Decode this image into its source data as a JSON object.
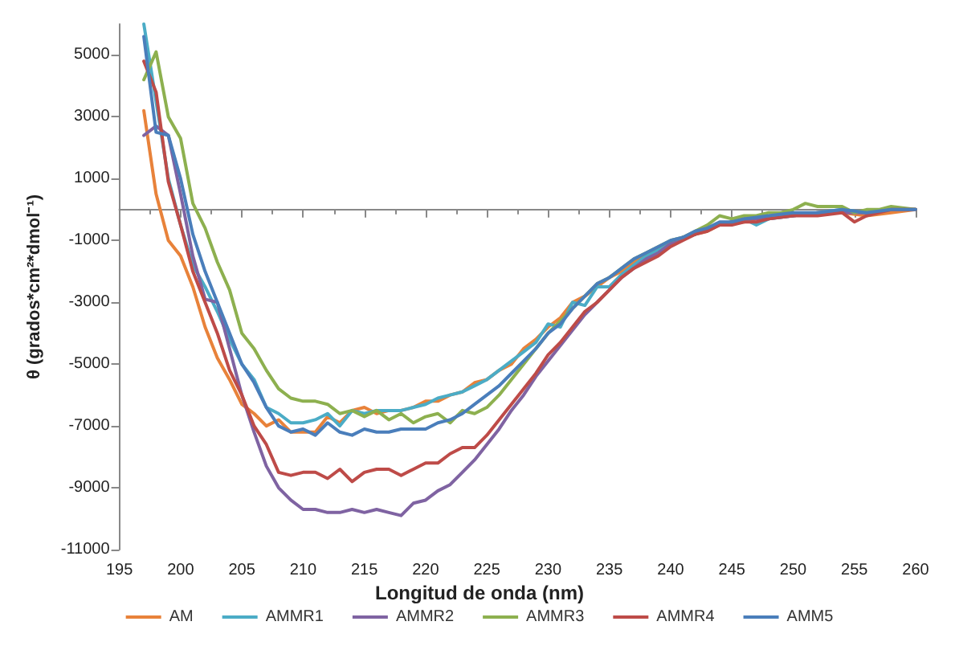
{
  "chart_data": {
    "type": "line",
    "xlabel": "Longitud de onda (nm)",
    "ylabel": "θ (grados*cm²*dmol⁻¹)",
    "xlim": [
      195,
      260
    ],
    "xticks": [
      195,
      200,
      205,
      210,
      215,
      220,
      225,
      230,
      235,
      240,
      245,
      250,
      255,
      260
    ],
    "ylim": [
      -11000,
      6000
    ],
    "yticks": [
      -11000,
      -9000,
      -7000,
      -5000,
      -3000,
      -1000,
      1000,
      3000,
      5000
    ],
    "grid": false,
    "legend": "bottom",
    "marker": "none",
    "line_style": "solid",
    "series": [
      {
        "name": "AM",
        "color": "#e8823a",
        "x": [
          197,
          198,
          199,
          200,
          201,
          202,
          203,
          204,
          205,
          206,
          207,
          208,
          209,
          210,
          211,
          212,
          213,
          214,
          215,
          216,
          217,
          218,
          219,
          220,
          221,
          222,
          223,
          224,
          225,
          226,
          227,
          228,
          229,
          230,
          231,
          232,
          233,
          234,
          235,
          236,
          237,
          238,
          239,
          240,
          241,
          242,
          243,
          244,
          245,
          246,
          247,
          248,
          249,
          250,
          252,
          254,
          256,
          258,
          260
        ],
        "values": [
          3200,
          500,
          -1000,
          -1500,
          -2500,
          -3800,
          -4800,
          -5500,
          -6300,
          -6600,
          -7000,
          -6800,
          -7200,
          -7200,
          -7200,
          -6700,
          -6900,
          -6500,
          -6400,
          -6600,
          -6500,
          -6500,
          -6400,
          -6200,
          -6200,
          -6000,
          -5900,
          -5600,
          -5500,
          -5200,
          -5000,
          -4500,
          -4200,
          -3800,
          -3500,
          -3000,
          -2800,
          -2500,
          -2200,
          -2000,
          -1700,
          -1500,
          -1300,
          -1100,
          -900,
          -800,
          -700,
          -500,
          -400,
          -400,
          -300,
          -300,
          -200,
          -200,
          -100,
          -100,
          -200,
          -100,
          0
        ]
      },
      {
        "name": "AMMR1",
        "color": "#4bacc6",
        "x": [
          197,
          198,
          199,
          200,
          201,
          202,
          203,
          204,
          205,
          206,
          207,
          208,
          209,
          210,
          211,
          212,
          213,
          214,
          215,
          216,
          217,
          218,
          219,
          220,
          221,
          222,
          223,
          224,
          225,
          226,
          227,
          228,
          229,
          230,
          231,
          232,
          233,
          234,
          235,
          236,
          237,
          238,
          239,
          240,
          241,
          242,
          243,
          244,
          245,
          246,
          247,
          248,
          250,
          252,
          254,
          256,
          258,
          260
        ],
        "values": [
          6000,
          3500,
          1000,
          -500,
          -1800,
          -2500,
          -3300,
          -4200,
          -5000,
          -5500,
          -6400,
          -6600,
          -6900,
          -6900,
          -6800,
          -6600,
          -7000,
          -6500,
          -6600,
          -6500,
          -6500,
          -6500,
          -6400,
          -6300,
          -6100,
          -6000,
          -5900,
          -5700,
          -5500,
          -5200,
          -4900,
          -4600,
          -4300,
          -3700,
          -3800,
          -3000,
          -3100,
          -2500,
          -2500,
          -2100,
          -1800,
          -1500,
          -1300,
          -1100,
          -900,
          -800,
          -600,
          -500,
          -400,
          -300,
          -500,
          -300,
          -200,
          -100,
          0,
          -100,
          0,
          0
        ]
      },
      {
        "name": "AMMR2",
        "color": "#7f63a2",
        "x": [
          197,
          198,
          199,
          200,
          201,
          202,
          203,
          204,
          205,
          206,
          207,
          208,
          209,
          210,
          211,
          212,
          213,
          214,
          215,
          216,
          217,
          218,
          219,
          220,
          221,
          222,
          223,
          224,
          225,
          226,
          227,
          228,
          229,
          230,
          231,
          232,
          233,
          234,
          235,
          236,
          237,
          238,
          239,
          240,
          241,
          242,
          243,
          244,
          245,
          246,
          248,
          250,
          252,
          254,
          256,
          258,
          260
        ],
        "values": [
          2400,
          2700,
          2400,
          500,
          -1500,
          -2900,
          -3000,
          -4500,
          -6000,
          -7200,
          -8300,
          -9000,
          -9400,
          -9700,
          -9700,
          -9800,
          -9800,
          -9700,
          -9800,
          -9700,
          -9800,
          -9900,
          -9500,
          -9400,
          -9100,
          -8900,
          -8500,
          -8100,
          -7600,
          -7100,
          -6500,
          -6000,
          -5400,
          -4900,
          -4400,
          -3900,
          -3400,
          -3000,
          -2600,
          -2200,
          -1900,
          -1600,
          -1400,
          -1100,
          -900,
          -800,
          -600,
          -500,
          -400,
          -300,
          -300,
          -200,
          -100,
          -100,
          -100,
          0,
          0
        ]
      },
      {
        "name": "AMMR3",
        "color": "#8db04f",
        "x": [
          197,
          198,
          199,
          200,
          201,
          202,
          203,
          204,
          205,
          206,
          207,
          208,
          209,
          210,
          211,
          212,
          213,
          214,
          215,
          216,
          217,
          218,
          219,
          220,
          221,
          222,
          223,
          224,
          225,
          226,
          227,
          228,
          229,
          230,
          231,
          232,
          233,
          234,
          235,
          236,
          237,
          238,
          239,
          240,
          241,
          242,
          243,
          244,
          245,
          246,
          247,
          248,
          249,
          250,
          251,
          252,
          253,
          254,
          255,
          256,
          257,
          258,
          260
        ],
        "values": [
          4200,
          5100,
          3000,
          2300,
          200,
          -600,
          -1700,
          -2600,
          -4000,
          -4500,
          -5200,
          -5800,
          -6100,
          -6200,
          -6200,
          -6300,
          -6600,
          -6500,
          -6700,
          -6500,
          -6800,
          -6600,
          -6900,
          -6700,
          -6600,
          -6900,
          -6500,
          -6600,
          -6400,
          -6000,
          -5500,
          -5000,
          -4500,
          -4000,
          -3600,
          -3200,
          -2800,
          -2400,
          -2200,
          -1900,
          -1600,
          -1400,
          -1200,
          -1000,
          -900,
          -700,
          -500,
          -200,
          -300,
          -200,
          -200,
          -100,
          -100,
          0,
          200,
          100,
          100,
          100,
          -100,
          0,
          0,
          100,
          0
        ]
      },
      {
        "name": "AMMR4",
        "color": "#be4b48",
        "x": [
          197,
          198,
          199,
          200,
          201,
          202,
          203,
          204,
          205,
          206,
          207,
          208,
          209,
          210,
          211,
          212,
          213,
          214,
          215,
          216,
          217,
          218,
          219,
          220,
          221,
          222,
          223,
          224,
          225,
          226,
          227,
          228,
          229,
          230,
          231,
          232,
          233,
          234,
          235,
          236,
          237,
          238,
          239,
          240,
          241,
          242,
          243,
          244,
          245,
          246,
          247,
          248,
          250,
          252,
          254,
          255,
          256,
          258,
          260
        ],
        "values": [
          4800,
          3800,
          900,
          -500,
          -2000,
          -3000,
          -4000,
          -5200,
          -6000,
          -7000,
          -7600,
          -8500,
          -8600,
          -8500,
          -8500,
          -8700,
          -8400,
          -8800,
          -8500,
          -8400,
          -8400,
          -8600,
          -8400,
          -8200,
          -8200,
          -7900,
          -7700,
          -7700,
          -7300,
          -6800,
          -6300,
          -5800,
          -5300,
          -4700,
          -4300,
          -3800,
          -3300,
          -3000,
          -2600,
          -2200,
          -1900,
          -1700,
          -1500,
          -1200,
          -1000,
          -800,
          -700,
          -500,
          -500,
          -400,
          -400,
          -300,
          -200,
          -200,
          -100,
          -400,
          -200,
          0,
          0
        ]
      },
      {
        "name": "AMM5",
        "color": "#4a7ebb",
        "x": [
          197,
          198,
          199,
          200,
          201,
          202,
          203,
          204,
          205,
          206,
          207,
          208,
          209,
          210,
          211,
          212,
          213,
          214,
          215,
          216,
          217,
          218,
          219,
          220,
          221,
          222,
          223,
          224,
          225,
          226,
          227,
          228,
          229,
          230,
          231,
          232,
          233,
          234,
          235,
          236,
          237,
          238,
          239,
          240,
          241,
          242,
          243,
          244,
          245,
          246,
          248,
          250,
          252,
          254,
          256,
          258,
          260
        ],
        "values": [
          5600,
          2500,
          2400,
          1000,
          -800,
          -2000,
          -3000,
          -4000,
          -5000,
          -5600,
          -6400,
          -7000,
          -7200,
          -7100,
          -7300,
          -6900,
          -7200,
          -7300,
          -7100,
          -7200,
          -7200,
          -7100,
          -7100,
          -7100,
          -6900,
          -6800,
          -6600,
          -6300,
          -6000,
          -5700,
          -5300,
          -4900,
          -4500,
          -4000,
          -3700,
          -3200,
          -2800,
          -2400,
          -2200,
          -1900,
          -1600,
          -1400,
          -1200,
          -1000,
          -900,
          -700,
          -600,
          -400,
          -400,
          -300,
          -200,
          -100,
          -100,
          0,
          -100,
          0,
          0
        ]
      }
    ]
  }
}
